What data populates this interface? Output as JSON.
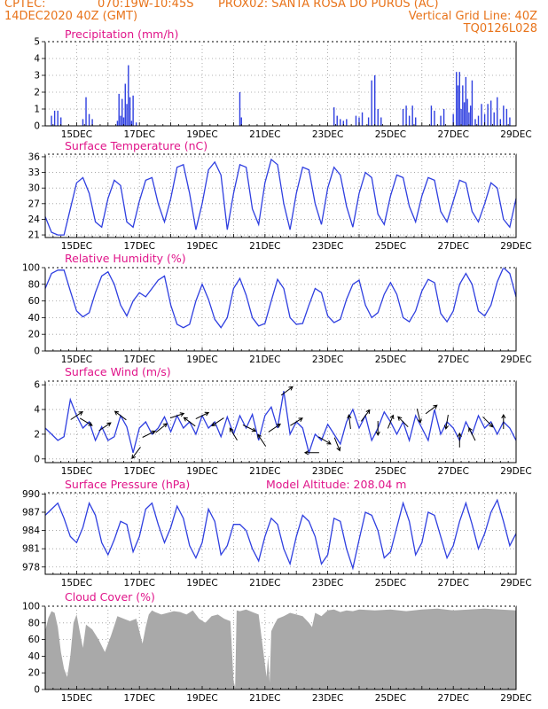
{
  "header": {
    "source": "CPTEC:",
    "coords": "070:19W-10:45S",
    "station": "PROX02: SANTA ROSA DO PURUS (AC)",
    "run": "14DEC2020 40Z (GMT)",
    "grid_note": "Vertical Grid Line: 40Z",
    "model_id": "TQ0126L028"
  },
  "colors": {
    "header": "#e8731a",
    "title": "#e0158a",
    "line": "#2f3fe0",
    "bar": "#2f3fe0",
    "cloud": "#a9a9a9",
    "arrow": "#000000"
  },
  "x_labels": [
    "15DEC",
    "17DEC",
    "19DEC",
    "21DEC",
    "23DEC",
    "25DEC",
    "27DEC",
    "29DEC"
  ],
  "chart_data": [
    {
      "id": "precip",
      "type": "bar",
      "title": "Precipitation (mm/h)",
      "x_unit": "day of Dec 2020",
      "xlim": [
        14.0,
        29.0
      ],
      "ylim": [
        0,
        5
      ],
      "yticks": [
        0,
        1,
        2,
        3,
        4,
        5
      ],
      "x": [
        14.2,
        14.3,
        14.4,
        14.5,
        15.2,
        15.3,
        15.4,
        15.5,
        16.3,
        16.35,
        16.4,
        16.45,
        16.5,
        16.55,
        16.6,
        16.65,
        16.7,
        16.75,
        16.8,
        16.9,
        20.2,
        20.25,
        23.2,
        23.3,
        23.4,
        23.5,
        23.6,
        23.9,
        24.0,
        24.1,
        24.3,
        24.4,
        24.5,
        24.6,
        24.7,
        25.4,
        25.5,
        25.6,
        25.7,
        25.8,
        26.3,
        26.4,
        26.6,
        26.7,
        27.0,
        27.1,
        27.15,
        27.2,
        27.25,
        27.3,
        27.35,
        27.4,
        27.45,
        27.5,
        27.55,
        27.6,
        27.7,
        27.8,
        27.9,
        28.0,
        28.1,
        28.2,
        28.3,
        28.4,
        28.5,
        28.6,
        28.7,
        28.8
      ],
      "values": [
        0.6,
        0.9,
        0.9,
        0.5,
        0.4,
        1.7,
        0.7,
        0.4,
        0.3,
        1.9,
        0.6,
        1.6,
        0.5,
        2.5,
        1.3,
        3.6,
        1.7,
        0.3,
        1.8,
        0.2,
        2.0,
        0.5,
        1.1,
        0.6,
        0.4,
        0.3,
        0.4,
        0.6,
        0.5,
        0.8,
        0.5,
        2.7,
        3.0,
        1.0,
        0.5,
        1.0,
        1.2,
        0.6,
        1.2,
        0.5,
        1.2,
        0.9,
        0.6,
        1.0,
        0.7,
        3.2,
        2.4,
        3.2,
        1.0,
        2.4,
        1.4,
        2.9,
        1.6,
        0.8,
        1.2,
        2.7,
        0.4,
        0.6,
        1.3,
        0.7,
        1.3,
        1.5,
        0.8,
        1.7,
        0.4,
        1.2,
        1.0,
        0.5
      ]
    },
    {
      "id": "temp",
      "type": "line",
      "title": "Surface Temperature (nC)",
      "x_unit": "day of Dec 2020",
      "xlim": [
        14.0,
        29.0
      ],
      "ylim": [
        20.5,
        36.5
      ],
      "yticks": [
        21,
        24,
        27,
        30,
        33,
        36
      ],
      "x": [
        14.0,
        14.2,
        14.4,
        14.6,
        14.8,
        15.0,
        15.2,
        15.4,
        15.6,
        15.8,
        16.0,
        16.2,
        16.4,
        16.6,
        16.8,
        17.0,
        17.2,
        17.4,
        17.6,
        17.8,
        18.0,
        18.2,
        18.4,
        18.6,
        18.8,
        19.0,
        19.2,
        19.4,
        19.6,
        19.8,
        20.0,
        20.2,
        20.4,
        20.6,
        20.8,
        21.0,
        21.2,
        21.4,
        21.6,
        21.8,
        22.0,
        22.2,
        22.4,
        22.6,
        22.8,
        23.0,
        23.2,
        23.4,
        23.6,
        23.8,
        24.0,
        24.2,
        24.4,
        24.6,
        24.8,
        25.0,
        25.2,
        25.4,
        25.6,
        25.8,
        26.0,
        26.2,
        26.4,
        26.6,
        26.8,
        27.0,
        27.2,
        27.4,
        27.6,
        27.8,
        28.0,
        28.2,
        28.4,
        28.6,
        28.8,
        29.0
      ],
      "values": [
        24.5,
        21.5,
        21.0,
        21.0,
        26.0,
        31.0,
        32.0,
        29.0,
        23.5,
        22.5,
        28.0,
        31.5,
        30.5,
        23.5,
        22.5,
        27.5,
        31.5,
        32.0,
        27.0,
        23.5,
        28.0,
        34.0,
        34.5,
        29.0,
        22.0,
        27.0,
        33.5,
        35.0,
        32.5,
        22.0,
        29.0,
        34.5,
        34.0,
        26.0,
        23.0,
        31.0,
        35.5,
        34.5,
        27.0,
        22.0,
        29.0,
        34.0,
        33.5,
        27.0,
        23.0,
        30.0,
        34.0,
        32.5,
        26.5,
        22.5,
        29.0,
        33.0,
        32.0,
        25.0,
        23.0,
        28.5,
        32.5,
        32.0,
        26.5,
        23.5,
        28.5,
        32.0,
        31.5,
        25.5,
        23.5,
        27.5,
        31.5,
        31.0,
        25.5,
        23.5,
        27.0,
        31.0,
        30.0,
        24.0,
        22.5,
        28.0
      ]
    },
    {
      "id": "rh",
      "type": "line",
      "title": "Relative Humidity (%)",
      "x_unit": "day of Dec 2020",
      "xlim": [
        14.0,
        29.0
      ],
      "ylim": [
        0,
        100
      ],
      "yticks": [
        0,
        20,
        40,
        60,
        80,
        100
      ],
      "x": [
        14.0,
        14.2,
        14.4,
        14.6,
        14.8,
        15.0,
        15.2,
        15.4,
        15.6,
        15.8,
        16.0,
        16.2,
        16.4,
        16.6,
        16.8,
        17.0,
        17.2,
        17.4,
        17.6,
        17.8,
        18.0,
        18.2,
        18.4,
        18.6,
        18.8,
        19.0,
        19.2,
        19.4,
        19.6,
        19.8,
        20.0,
        20.2,
        20.4,
        20.6,
        20.8,
        21.0,
        21.2,
        21.4,
        21.6,
        21.8,
        22.0,
        22.2,
        22.4,
        22.6,
        22.8,
        23.0,
        23.2,
        23.4,
        23.6,
        23.8,
        24.0,
        24.2,
        24.4,
        24.6,
        24.8,
        25.0,
        25.2,
        25.4,
        25.6,
        25.8,
        26.0,
        26.2,
        26.4,
        26.6,
        26.8,
        27.0,
        27.2,
        27.4,
        27.6,
        27.8,
        28.0,
        28.2,
        28.4,
        28.6,
        28.8,
        29.0
      ],
      "values": [
        75,
        93,
        97,
        97,
        72,
        48,
        41,
        46,
        70,
        90,
        95,
        80,
        55,
        42,
        60,
        70,
        65,
        75,
        85,
        90,
        55,
        32,
        28,
        32,
        60,
        80,
        62,
        38,
        28,
        40,
        75,
        87,
        67,
        40,
        30,
        33,
        60,
        86,
        75,
        40,
        32,
        33,
        55,
        75,
        70,
        42,
        34,
        38,
        62,
        80,
        85,
        55,
        40,
        46,
        68,
        82,
        68,
        40,
        35,
        48,
        72,
        86,
        82,
        45,
        35,
        48,
        80,
        93,
        80,
        48,
        42,
        55,
        83,
        100,
        93,
        65
      ]
    },
    {
      "id": "wind",
      "type": "line",
      "title": "Surface Wind (m/s)",
      "x_unit": "day of Dec 2020",
      "xlim": [
        14.0,
        29.0
      ],
      "ylim": [
        -0.3,
        6.3
      ],
      "yticks": [
        0,
        2,
        4,
        6
      ],
      "x": [
        14.0,
        14.2,
        14.4,
        14.6,
        14.8,
        15.0,
        15.2,
        15.4,
        15.6,
        15.8,
        16.0,
        16.2,
        16.4,
        16.6,
        16.8,
        17.0,
        17.2,
        17.4,
        17.6,
        17.8,
        18.0,
        18.2,
        18.4,
        18.6,
        18.8,
        19.0,
        19.2,
        19.4,
        19.6,
        19.8,
        20.0,
        20.2,
        20.4,
        20.6,
        20.8,
        21.0,
        21.2,
        21.4,
        21.6,
        21.8,
        22.0,
        22.2,
        22.4,
        22.6,
        22.8,
        23.0,
        23.2,
        23.4,
        23.6,
        23.8,
        24.0,
        24.2,
        24.4,
        24.6,
        24.8,
        25.0,
        25.2,
        25.4,
        25.6,
        25.8,
        26.0,
        26.2,
        26.4,
        26.6,
        26.8,
        27.0,
        27.2,
        27.4,
        27.6,
        27.8,
        28.0,
        28.2,
        28.4,
        28.6,
        28.8,
        29.0
      ],
      "values": [
        2.5,
        2.0,
        1.5,
        1.8,
        4.8,
        3.5,
        2.5,
        3.0,
        1.5,
        2.6,
        1.5,
        1.8,
        3.5,
        2.6,
        0.5,
        2.5,
        3.0,
        2.0,
        2.5,
        3.4,
        2.2,
        3.5,
        2.5,
        3.0,
        2.0,
        3.5,
        2.5,
        3.0,
        1.8,
        3.4,
        2.0,
        3.5,
        2.5,
        3.6,
        1.5,
        3.5,
        4.2,
        2.5,
        5.5,
        2.0,
        3.0,
        2.5,
        0.5,
        2.0,
        1.5,
        2.8,
        2.0,
        1.2,
        3.0,
        4.0,
        2.5,
        3.5,
        1.5,
        2.5,
        3.8,
        3.0,
        2.0,
        3.0,
        1.5,
        3.5,
        2.5,
        1.5,
        4.0,
        2.0,
        3.0,
        2.5,
        1.5,
        3.0,
        2.0,
        3.5,
        2.5,
        3.0,
        2.0,
        3.0,
        2.5,
        1.5
      ],
      "arrows": {
        "x": [
          15.0,
          15.3,
          15.9,
          16.4,
          16.9,
          17.3,
          17.7,
          18.2,
          18.6,
          19.0,
          19.5,
          20.0,
          20.5,
          20.9,
          21.3,
          21.7,
          22.0,
          22.5,
          22.9,
          23.3,
          23.7,
          24.2,
          24.6,
          25.0,
          25.4,
          25.9,
          26.3,
          26.8,
          27.2,
          27.6,
          28.1,
          28.6
        ],
        "u": [
          0.9,
          0.5,
          0.6,
          -0.4,
          -0.3,
          0.4,
          0.5,
          0.6,
          -0.4,
          0.6,
          -0.3,
          -0.3,
          0.6,
          -0.2,
          0.9,
          0.4,
          0.8,
          -0.2,
          0.5,
          0.2,
          -0.1,
          0.3,
          0.0,
          0.2,
          -0.3,
          0.2,
          0.4,
          -0.1,
          0.0,
          -0.2,
          0.4,
          0.0
        ],
        "v": [
          0.6,
          -0.3,
          0.4,
          0.3,
          -0.4,
          0.2,
          0.4,
          0.2,
          0.3,
          0.3,
          -0.2,
          0.5,
          -0.3,
          0.3,
          0.6,
          0.3,
          0.5,
          0.0,
          -0.3,
          -0.5,
          0.8,
          0.4,
          -0.6,
          0.5,
          0.3,
          -0.8,
          0.3,
          -0.6,
          0.8,
          0.4,
          -0.4,
          0.5
        ]
      }
    },
    {
      "id": "pressure",
      "type": "line",
      "title": "Surface Pressure (hPa)",
      "annotation": "Model Altitude: 208.04 m",
      "x_unit": "day of Dec 2020",
      "xlim": [
        14.0,
        29.0
      ],
      "ylim": [
        976.8,
        990.2
      ],
      "yticks": [
        978,
        981,
        984,
        987,
        990
      ],
      "x": [
        14.0,
        14.2,
        14.4,
        14.6,
        14.8,
        15.0,
        15.2,
        15.4,
        15.6,
        15.8,
        16.0,
        16.2,
        16.4,
        16.6,
        16.8,
        17.0,
        17.2,
        17.4,
        17.6,
        17.8,
        18.0,
        18.2,
        18.4,
        18.6,
        18.8,
        19.0,
        19.2,
        19.4,
        19.6,
        19.8,
        20.0,
        20.2,
        20.4,
        20.6,
        20.8,
        21.0,
        21.2,
        21.4,
        21.6,
        21.8,
        22.0,
        22.2,
        22.4,
        22.6,
        22.8,
        23.0,
        23.2,
        23.4,
        23.6,
        23.8,
        24.0,
        24.2,
        24.4,
        24.6,
        24.8,
        25.0,
        25.2,
        25.4,
        25.6,
        25.8,
        26.0,
        26.2,
        26.4,
        26.6,
        26.8,
        27.0,
        27.2,
        27.4,
        27.6,
        27.8,
        28.0,
        28.2,
        28.4,
        28.6,
        28.8,
        29.0
      ],
      "values": [
        986.5,
        987.5,
        988.5,
        986.0,
        983.0,
        982.0,
        984.5,
        988.5,
        986.5,
        982.0,
        980.0,
        982.5,
        985.5,
        985.0,
        980.5,
        983.0,
        987.5,
        988.5,
        985.0,
        982.0,
        984.5,
        988.0,
        986.0,
        981.5,
        979.5,
        982.0,
        987.5,
        985.5,
        980.0,
        981.5,
        985.0,
        985.0,
        984.0,
        981.0,
        979.0,
        983.0,
        986.0,
        985.0,
        981.0,
        978.5,
        983.0,
        986.5,
        985.5,
        983.0,
        978.5,
        980.0,
        986.0,
        985.5,
        981.0,
        977.8,
        982.5,
        987.0,
        986.5,
        984.0,
        979.5,
        980.5,
        984.5,
        988.5,
        985.5,
        980.0,
        982.0,
        987.0,
        986.5,
        983.0,
        979.5,
        981.5,
        985.5,
        988.5,
        985.0,
        981.0,
        983.5,
        987.0,
        989.0,
        985.5,
        981.5,
        983.5
      ]
    },
    {
      "id": "cloud",
      "type": "area",
      "title": "Cloud Cover (%)",
      "x_unit": "day of Dec 2020",
      "xlim": [
        14.0,
        29.0
      ],
      "ylim": [
        0,
        100
      ],
      "yticks": [
        0,
        20,
        40,
        60,
        80,
        100
      ],
      "x": [
        14.0,
        14.1,
        14.2,
        14.3,
        14.4,
        14.5,
        14.6,
        14.7,
        14.8,
        14.9,
        15.0,
        15.1,
        15.2,
        15.3,
        15.5,
        15.7,
        15.9,
        16.1,
        16.3,
        16.5,
        16.7,
        16.9,
        17.0,
        17.1,
        17.2,
        17.3,
        17.4,
        17.5,
        17.7,
        17.9,
        18.1,
        18.3,
        18.5,
        18.7,
        18.9,
        19.1,
        19.3,
        19.5,
        19.7,
        19.9,
        20.0,
        20.05,
        20.1,
        20.2,
        20.4,
        20.6,
        20.8,
        20.9,
        21.0,
        21.05,
        21.1,
        21.15,
        21.2,
        21.3,
        21.4,
        21.6,
        21.8,
        22.0,
        22.2,
        22.4,
        22.5,
        22.6,
        22.7,
        22.8,
        23.0,
        23.2,
        23.4,
        23.6,
        23.8,
        24.0,
        24.5,
        25.0,
        25.5,
        26.0,
        26.5,
        27.0,
        27.5,
        28.0,
        28.5,
        29.0
      ],
      "values": [
        70,
        86,
        94,
        92,
        75,
        45,
        25,
        15,
        40,
        80,
        90,
        70,
        50,
        78,
        72,
        60,
        45,
        65,
        88,
        85,
        82,
        85,
        70,
        55,
        75,
        90,
        95,
        93,
        90,
        92,
        94,
        93,
        90,
        95,
        85,
        80,
        88,
        90,
        85,
        82,
        10,
        3,
        95,
        94,
        96,
        93,
        90,
        60,
        30,
        15,
        40,
        8,
        70,
        78,
        85,
        88,
        92,
        90,
        88,
        80,
        75,
        92,
        90,
        88,
        95,
        96,
        93,
        95,
        94,
        96,
        95,
        96,
        94,
        96,
        97,
        95,
        96,
        97,
        96,
        95
      ]
    }
  ]
}
